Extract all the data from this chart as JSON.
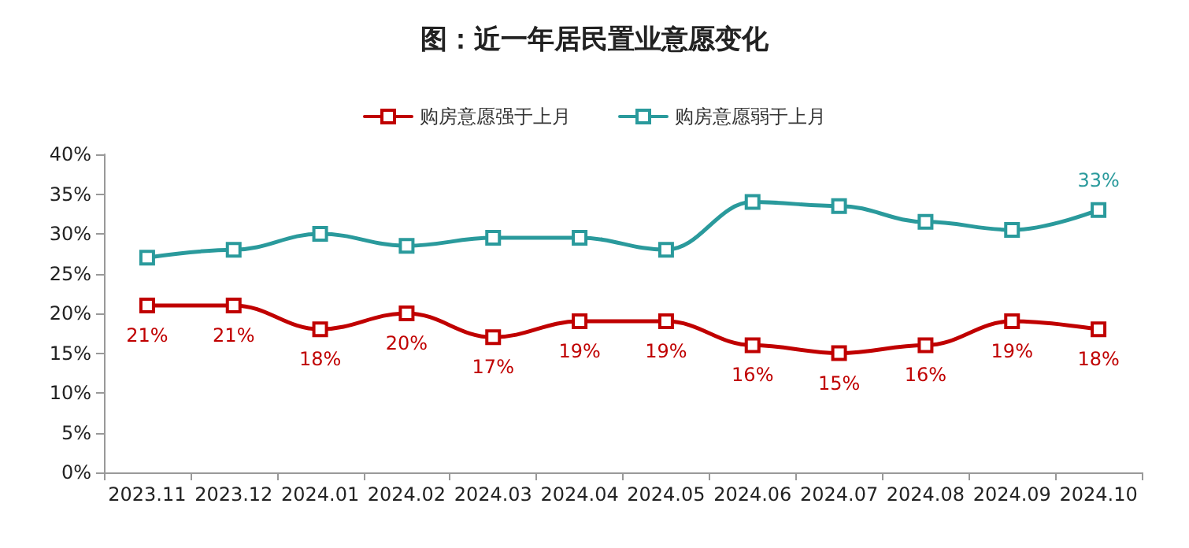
{
  "chart_data": {
    "type": "line",
    "title": "图：近一年居民置业意愿变化",
    "categories": [
      "2023.11",
      "2023.12",
      "2024.01",
      "2024.02",
      "2024.03",
      "2024.04",
      "2024.05",
      "2024.06",
      "2024.07",
      "2024.08",
      "2024.09",
      "2024.10"
    ],
    "series": [
      {
        "name": "购房意愿强于上月",
        "color": "#c00000",
        "values": [
          21,
          21,
          18,
          20,
          17,
          19,
          19,
          16,
          15,
          16,
          19,
          18
        ],
        "value_labels": [
          "21%",
          "21%",
          "18%",
          "20%",
          "17%",
          "19%",
          "19%",
          "16%",
          "15%",
          "16%",
          "19%",
          "18%"
        ]
      },
      {
        "name": "购房意愿弱于上月",
        "color": "#2a9a9c",
        "values": [
          27,
          28,
          30,
          28.5,
          29.5,
          29.5,
          28,
          34,
          33.5,
          31.5,
          30.5,
          33
        ],
        "value_labels": [
          null,
          null,
          null,
          null,
          null,
          null,
          null,
          null,
          null,
          null,
          null,
          "33%"
        ]
      }
    ],
    "ylim": [
      0,
      40
    ],
    "yticks": [
      {
        "value": 0,
        "label": "0%"
      },
      {
        "value": 5,
        "label": "5%"
      },
      {
        "value": 10,
        "label": "10%"
      },
      {
        "value": 15,
        "label": "15%"
      },
      {
        "value": 20,
        "label": "20%"
      },
      {
        "value": 25,
        "label": "25%"
      },
      {
        "value": 30,
        "label": "30%"
      },
      {
        "value": 35,
        "label": "35%"
      },
      {
        "value": 40,
        "label": "40%"
      }
    ],
    "grid": false,
    "legend": "top",
    "marker": "square",
    "line_style": "solid"
  }
}
